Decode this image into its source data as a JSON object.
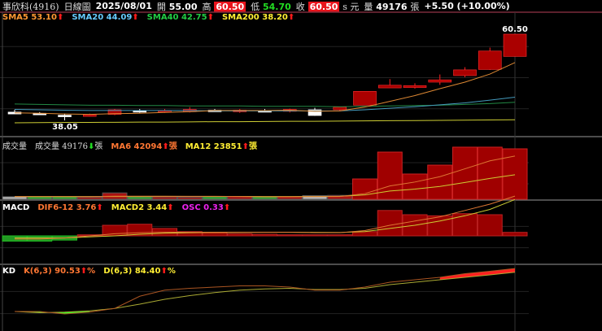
{
  "header": {
    "name": "事欣科(4916)",
    "period": "日線圖",
    "date": "2025/08/01",
    "open_label": "開",
    "open": "55.00",
    "high_label": "高",
    "high": "60.50",
    "low_label": "低",
    "low": "54.70",
    "close_label": "收",
    "close": "60.50",
    "unit_s": "s 元",
    "vol_label": "量",
    "volume": "49176",
    "vol_unit": "張",
    "change": "+5.50 (+10.00%)"
  },
  "legends": {
    "price": [
      {
        "label": "SMA5 53.10",
        "color": "#ff9933"
      },
      {
        "label": "SMA20 44.09",
        "color": "#66ccff"
      },
      {
        "label": "SMA40 42.75",
        "color": "#22cc44"
      },
      {
        "label": "SMA200 38.20",
        "color": "#ffee33"
      }
    ],
    "volume": {
      "title": "成交量",
      "v_label": "成交量 49176",
      "v_unit": "張",
      "ma6": "MA6 42094",
      "ma6_unit": "張",
      "ma12": "MA12 23851",
      "ma12_unit": "張"
    },
    "macd": {
      "title": "MACD",
      "dif": "DIF6-12 3.76",
      "macd": "MACD2 3.44",
      "osc": "OSC 0.33"
    },
    "kd": {
      "title": "KD",
      "k": "K(6,3) 90.53",
      "d": "D(6,3) 84.40",
      "unit": "%"
    }
  },
  "arrows": {
    "up": "⬆",
    "down": "⬇"
  },
  "chart_data": {
    "type": "candlestick",
    "price_labels": {
      "max": "60.50",
      "min": "38.05"
    },
    "ohlc": [
      [
        40.2,
        40.8,
        39.7,
        39.7
      ],
      [
        39.9,
        40.2,
        39.5,
        39.6
      ],
      [
        39.4,
        39.8,
        38.05,
        39.0
      ],
      [
        39.3,
        39.8,
        39.0,
        39.5
      ],
      [
        39.6,
        41.0,
        39.4,
        40.8
      ],
      [
        40.6,
        41.0,
        40.0,
        40.3
      ],
      [
        40.2,
        41.0,
        40.0,
        40.6
      ],
      [
        40.3,
        41.5,
        40.1,
        40.9
      ],
      [
        40.7,
        41.0,
        40.4,
        40.5
      ],
      [
        40.4,
        41.0,
        40.0,
        40.7
      ],
      [
        40.6,
        41.0,
        40.3,
        40.4
      ],
      [
        40.4,
        41.1,
        40.1,
        40.9
      ],
      [
        40.8,
        41.3,
        39.2,
        39.3
      ],
      [
        40.8,
        41.6,
        40.4,
        41.5
      ],
      [
        42.0,
        45.6,
        42.0,
        45.6
      ],
      [
        46.5,
        48.8,
        46.5,
        47.2
      ],
      [
        46.6,
        47.7,
        46.3,
        47.1
      ],
      [
        48.0,
        50.0,
        47.3,
        48.6
      ],
      [
        49.7,
        51.9,
        49.3,
        51.2
      ],
      [
        51.3,
        57.0,
        51.2,
        56.1
      ],
      [
        54.7,
        60.5,
        54.7,
        60.5
      ]
    ],
    "sma5": [
      40.0,
      39.9,
      39.7,
      39.6,
      39.8,
      39.9,
      40.1,
      40.3,
      40.6,
      40.6,
      40.6,
      40.7,
      40.4,
      40.5,
      41.5,
      43.0,
      44.5,
      46.3,
      48.0,
      50.1,
      53.1
    ],
    "sma20": [
      40.9,
      40.8,
      40.7,
      40.6,
      40.6,
      40.6,
      40.6,
      40.6,
      40.5,
      40.5,
      40.5,
      40.5,
      40.5,
      40.5,
      40.8,
      41.2,
      41.6,
      42.1,
      42.6,
      43.3,
      44.09
    ],
    "sma40": [
      42.3,
      42.2,
      42.1,
      42.0,
      42.0,
      41.9,
      41.9,
      41.8,
      41.8,
      41.8,
      41.7,
      41.7,
      41.7,
      41.6,
      41.7,
      41.8,
      41.9,
      42.0,
      42.2,
      42.4,
      42.75
    ],
    "sma200": [
      37.4,
      37.45,
      37.5,
      37.5,
      37.55,
      37.6,
      37.6,
      37.65,
      37.7,
      37.7,
      37.75,
      37.8,
      37.8,
      37.85,
      37.9,
      37.95,
      38.0,
      38.05,
      38.1,
      38.15,
      38.2
    ],
    "volume": [
      2500,
      2600,
      2600,
      2000,
      6200,
      2400,
      2300,
      2000,
      2600,
      2600,
      2500,
      2400,
      3600,
      3800,
      19800,
      46000,
      24600,
      33300,
      50800,
      50800,
      49176
    ],
    "vol_ma6": [
      2600,
      2600,
      2600,
      2500,
      3000,
      3000,
      3000,
      2900,
      2900,
      2700,
      2400,
      2400,
      2600,
      2700,
      5500,
      13000,
      16800,
      22000,
      29700,
      37500,
      42094
    ],
    "vol_ma12": [
      2700,
      2700,
      2700,
      2700,
      2700,
      2700,
      2800,
      2800,
      2800,
      2800,
      2700,
      2700,
      2800,
      2900,
      4300,
      8000,
      9900,
      12500,
      16400,
      20300,
      23851
    ],
    "macd_osc": [
      -0.5,
      -0.5,
      -0.4,
      0.1,
      1.0,
      1.1,
      0.7,
      0.4,
      0.3,
      0.2,
      0.15,
      0.1,
      0.1,
      0.1,
      0.4,
      2.4,
      2.0,
      1.9,
      2.1,
      2.0,
      0.33
    ],
    "macd_dif": [
      -0.3,
      -0.3,
      -0.2,
      0.0,
      0.2,
      0.3,
      0.35,
      0.35,
      0.35,
      0.35,
      0.35,
      0.35,
      0.3,
      0.3,
      0.5,
      1.0,
      1.4,
      1.8,
      2.4,
      3.0,
      3.76
    ],
    "macd_macd": [
      -0.2,
      -0.2,
      -0.2,
      -0.1,
      0.0,
      0.15,
      0.25,
      0.3,
      0.32,
      0.33,
      0.34,
      0.34,
      0.33,
      0.32,
      0.4,
      0.7,
      1.0,
      1.4,
      1.9,
      2.5,
      3.44
    ],
    "k": [
      20,
      20,
      16,
      19,
      25,
      45,
      55,
      58,
      60,
      62,
      62,
      60,
      55,
      55,
      60,
      68,
      72,
      76,
      82,
      86,
      90.53
    ],
    "d": [
      20,
      18,
      19,
      21,
      25,
      32,
      40,
      46,
      51,
      55,
      57,
      58,
      56,
      56,
      58,
      64,
      68,
      72,
      76,
      80,
      84.4
    ]
  }
}
